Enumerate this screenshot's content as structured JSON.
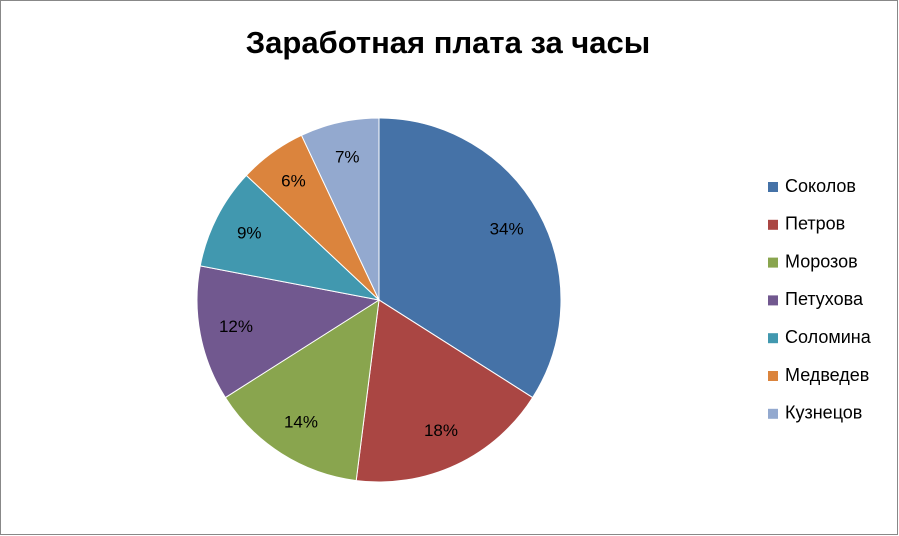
{
  "chart_data": {
    "type": "pie",
    "title": "Заработная плата за часы",
    "categories": [
      "Соколов",
      "Петров",
      "Морозов",
      "Петухова",
      "Соломина",
      "Медведев",
      "Кузнецов"
    ],
    "values": [
      34,
      18,
      14,
      12,
      9,
      6,
      7
    ],
    "value_labels": [
      "34%",
      "18%",
      "14%",
      "12%",
      "9%",
      "6%",
      "7%"
    ],
    "colors": [
      "#4572a7",
      "#aa4643",
      "#89a54e",
      "#71588f",
      "#4198af",
      "#db843d",
      "#93a9cf"
    ],
    "legend": "right"
  }
}
